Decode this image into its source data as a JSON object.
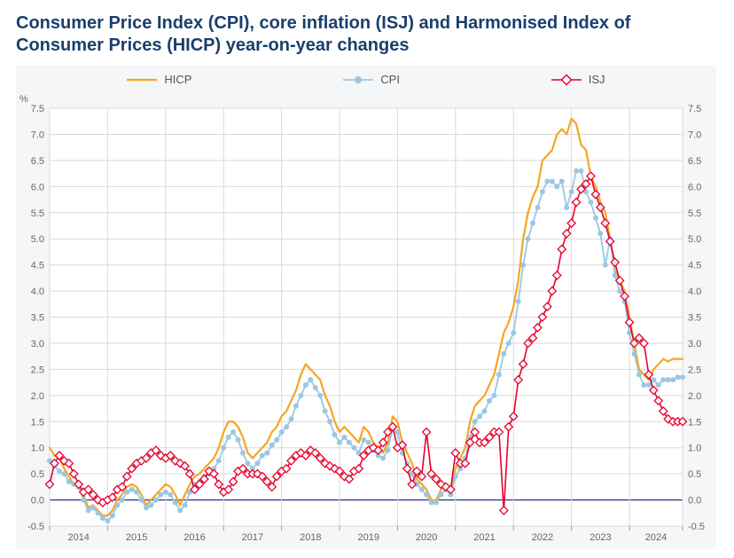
{
  "title": "Consumer Price Index (CPI), core inflation (ISJ) and Harmonised Index of Consumer Prices (HICP) year-on-year changes",
  "y_unit_label": "%",
  "chart": {
    "type": "line",
    "background_color": "#f5f6f7",
    "plot_background_color": "#ffffff",
    "grid_color": "#d9d9d9",
    "zero_line_color": "#1a237e",
    "zero_line_width": 1.2,
    "title_color": "#1a3f6e",
    "axis_label_color": "#666666",
    "axis_fontsize": 11,
    "legend_fontsize": 13,
    "ylim": [
      -0.5,
      7.5
    ],
    "ytick_step": 0.5,
    "x_start_index": 0,
    "x_end_index": 131,
    "x_year_ticks": [
      0,
      12,
      24,
      36,
      48,
      60,
      72,
      84,
      96,
      108,
      120,
      131
    ],
    "x_year_labels": [
      "2014",
      "2015",
      "2016",
      "2017",
      "2018",
      "2019",
      "2020",
      "2021",
      "2022",
      "2023",
      "2024"
    ],
    "series": [
      {
        "key": "HICP",
        "label": "HICP",
        "color": "#f5a623",
        "line_width": 2.2,
        "has_markers": false,
        "marker_color": "#f5a623",
        "values": [
          1.0,
          0.85,
          0.8,
          0.6,
          0.45,
          0.3,
          0.25,
          0.1,
          -0.15,
          -0.1,
          -0.2,
          -0.3,
          -0.3,
          -0.2,
          0.0,
          0.1,
          0.25,
          0.3,
          0.25,
          0.1,
          -0.1,
          0.0,
          0.1,
          0.2,
          0.3,
          0.25,
          0.1,
          -0.1,
          0.1,
          0.3,
          0.45,
          0.5,
          0.6,
          0.7,
          0.8,
          1.0,
          1.3,
          1.5,
          1.5,
          1.4,
          1.2,
          0.9,
          0.8,
          0.9,
          1.0,
          1.1,
          1.3,
          1.4,
          1.6,
          1.7,
          1.9,
          2.1,
          2.4,
          2.6,
          2.5,
          2.4,
          2.3,
          2.0,
          1.8,
          1.5,
          1.3,
          1.4,
          1.3,
          1.2,
          1.1,
          1.4,
          1.3,
          1.1,
          1.0,
          0.9,
          1.1,
          1.6,
          1.5,
          1.1,
          0.9,
          0.7,
          0.4,
          0.3,
          0.2,
          0.0,
          0.0,
          0.2,
          0.3,
          0.2,
          0.6,
          0.8,
          1.0,
          1.5,
          1.8,
          1.9,
          2.0,
          2.2,
          2.4,
          2.8,
          3.2,
          3.4,
          3.7,
          4.2,
          5.0,
          5.5,
          5.8,
          6.0,
          6.5,
          6.6,
          6.7,
          7.0,
          7.1,
          7.0,
          7.3,
          7.2,
          6.8,
          6.7,
          6.2,
          6.0,
          5.7,
          5.5,
          5.0,
          4.4,
          4.2,
          4.0,
          3.5,
          3.0,
          2.5,
          2.4,
          2.3,
          2.5,
          2.6,
          2.7,
          2.65,
          2.7,
          2.7,
          2.7
        ]
      },
      {
        "key": "CPI",
        "label": "CPI",
        "color": "#9ac7e3",
        "line_width": 1.8,
        "has_markers": true,
        "marker_style": "filled-circle",
        "marker_size": 3.0,
        "marker_color": "#9ac7e3",
        "values": [
          0.75,
          0.65,
          0.55,
          0.5,
          0.35,
          0.3,
          0.25,
          0.0,
          -0.2,
          -0.15,
          -0.25,
          -0.35,
          -0.4,
          -0.3,
          -0.1,
          0.0,
          0.15,
          0.2,
          0.15,
          0.0,
          -0.15,
          -0.1,
          0.0,
          0.1,
          0.15,
          0.1,
          -0.05,
          -0.2,
          -0.1,
          0.15,
          0.3,
          0.35,
          0.45,
          0.5,
          0.6,
          0.75,
          1.0,
          1.2,
          1.3,
          1.15,
          0.9,
          0.7,
          0.6,
          0.7,
          0.85,
          0.9,
          1.05,
          1.15,
          1.3,
          1.4,
          1.55,
          1.8,
          2.0,
          2.2,
          2.3,
          2.15,
          2.0,
          1.7,
          1.5,
          1.25,
          1.1,
          1.2,
          1.1,
          1.0,
          0.9,
          1.15,
          1.1,
          0.95,
          0.85,
          0.8,
          0.95,
          1.4,
          1.3,
          0.9,
          0.7,
          0.5,
          0.3,
          0.2,
          0.1,
          -0.05,
          -0.05,
          0.1,
          0.2,
          0.1,
          0.45,
          0.6,
          0.8,
          1.2,
          1.5,
          1.6,
          1.7,
          1.9,
          2.0,
          2.4,
          2.8,
          3.0,
          3.2,
          3.8,
          4.5,
          5.0,
          5.3,
          5.6,
          5.9,
          6.1,
          6.1,
          6.0,
          6.1,
          5.6,
          5.9,
          6.3,
          6.3,
          5.9,
          5.7,
          5.4,
          5.1,
          4.5,
          5.0,
          4.3,
          4.0,
          3.8,
          3.2,
          2.8,
          2.4,
          2.2,
          2.2,
          2.3,
          2.2,
          2.3,
          2.3,
          2.3,
          2.35,
          2.35
        ]
      },
      {
        "key": "ISJ",
        "label": "ISJ",
        "color": "#e6002e",
        "line_width": 1.6,
        "has_markers": true,
        "marker_style": "diamond-open",
        "marker_size": 4.5,
        "marker_color": "#e6002e",
        "values": [
          0.3,
          0.7,
          0.85,
          0.75,
          0.7,
          0.5,
          0.3,
          0.15,
          0.2,
          0.1,
          0.0,
          -0.05,
          0.0,
          0.05,
          0.2,
          0.25,
          0.45,
          0.6,
          0.7,
          0.75,
          0.8,
          0.9,
          0.95,
          0.85,
          0.8,
          0.85,
          0.75,
          0.7,
          0.65,
          0.5,
          0.2,
          0.3,
          0.4,
          0.55,
          0.5,
          0.3,
          0.15,
          0.2,
          0.35,
          0.55,
          0.6,
          0.5,
          0.5,
          0.5,
          0.45,
          0.35,
          0.25,
          0.45,
          0.55,
          0.6,
          0.75,
          0.85,
          0.9,
          0.85,
          0.95,
          0.9,
          0.8,
          0.7,
          0.65,
          0.6,
          0.55,
          0.45,
          0.4,
          0.55,
          0.6,
          0.85,
          0.95,
          1.0,
          0.95,
          1.1,
          1.3,
          1.4,
          1.0,
          1.05,
          0.6,
          0.3,
          0.55,
          0.45,
          1.3,
          0.5,
          0.4,
          0.3,
          0.25,
          0.2,
          0.9,
          0.7,
          0.7,
          1.1,
          1.3,
          1.1,
          1.1,
          1.2,
          1.3,
          1.3,
          -0.2,
          1.4,
          1.6,
          2.3,
          2.6,
          3.0,
          3.1,
          3.3,
          3.5,
          3.7,
          4.0,
          4.3,
          4.8,
          5.1,
          5.3,
          5.7,
          5.95,
          6.05,
          6.2,
          5.85,
          5.6,
          5.3,
          4.95,
          4.55,
          4.2,
          3.9,
          3.4,
          3.0,
          3.1,
          3.0,
          2.4,
          2.1,
          1.9,
          1.7,
          1.55,
          1.5,
          1.5,
          1.5
        ]
      }
    ]
  }
}
